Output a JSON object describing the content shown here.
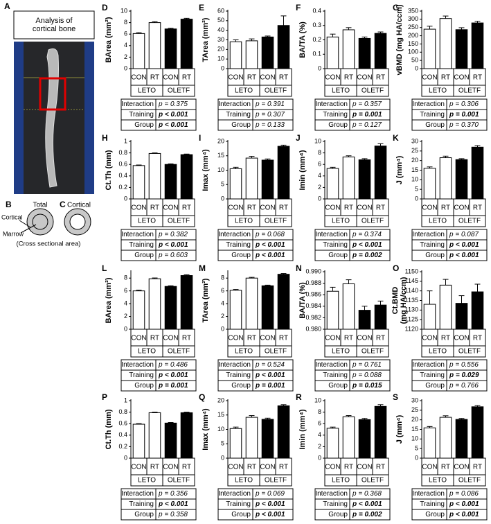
{
  "figure": {
    "a_label": "A",
    "a_title": "Analysis of\ncortical bone",
    "b_label": "B",
    "b_title": "Total",
    "c_label": "C",
    "c_title": "Cortical",
    "cortical": "Cortical",
    "marrow": "Marrow",
    "caption": "(Cross sectional area)"
  },
  "chart_data": [
    {
      "type": "bar",
      "panel": "D",
      "ylabel": "BArea (mm²)",
      "categories": [
        "CON",
        "RT",
        "CON",
        "RT"
      ],
      "groups": [
        "LETO",
        "OLETF"
      ],
      "colors": [
        "#ffffff",
        "#ffffff",
        "#000000",
        "#000000"
      ],
      "values": [
        6.1,
        8.0,
        6.9,
        8.6
      ],
      "errors": [
        0.15,
        0.15,
        0.12,
        0.15
      ],
      "ylim": [
        0,
        10
      ],
      "yticks": [
        0,
        2,
        4,
        6,
        8,
        10
      ],
      "stats": [
        {
          "label": "Interaction",
          "p": "p = 0.375",
          "bold": false
        },
        {
          "label": "Training",
          "p": "p < 0.001",
          "bold": true
        },
        {
          "label": "Group",
          "p": "p < 0.001",
          "bold": true
        }
      ]
    },
    {
      "type": "bar",
      "panel": "E",
      "ylabel": "TArea (mm²)",
      "categories": [
        "CON",
        "RT",
        "CON",
        "RT"
      ],
      "groups": [
        "LETO",
        "OLETF"
      ],
      "colors": [
        "#ffffff",
        "#ffffff",
        "#000000",
        "#000000"
      ],
      "values": [
        28,
        29,
        33,
        45
      ],
      "errors": [
        2,
        2,
        1,
        10
      ],
      "ylim": [
        0,
        60
      ],
      "yticks": [
        0,
        10,
        20,
        30,
        40,
        50,
        60
      ],
      "stats": [
        {
          "label": "Interaction",
          "p": "p = 0.391",
          "bold": false
        },
        {
          "label": "Training",
          "p": "p = 0.307",
          "bold": false
        },
        {
          "label": "Group",
          "p": "p = 0.133",
          "bold": false
        }
      ]
    },
    {
      "type": "bar",
      "panel": "F",
      "ylabel": "BA/TA (%)",
      "categories": [
        "CON",
        "RT",
        "CON",
        "RT"
      ],
      "groups": [
        "LETO",
        "OLETF"
      ],
      "colors": [
        "#ffffff",
        "#ffffff",
        "#000000",
        "#000000"
      ],
      "values": [
        0.22,
        0.27,
        0.21,
        0.245
      ],
      "errors": [
        0.02,
        0.015,
        0.01,
        0.01
      ],
      "ylim": [
        0,
        0.4
      ],
      "yticks": [
        0,
        0.1,
        0.2,
        0.3,
        0.4
      ],
      "stats": [
        {
          "label": "Interaction",
          "p": "p = 0.357",
          "bold": false
        },
        {
          "label": "Training",
          "p": "p = 0.001",
          "bold": true
        },
        {
          "label": "Group",
          "p": "p = 0.127",
          "bold": false
        }
      ]
    },
    {
      "type": "bar",
      "panel": "G",
      "ylabel": "vBMD (mg HA/ccm)",
      "categories": [
        "CON",
        "RT",
        "CON",
        "RT"
      ],
      "groups": [
        "LETO",
        "OLETF"
      ],
      "colors": [
        "#ffffff",
        "#ffffff",
        "#000000",
        "#000000"
      ],
      "values": [
        240,
        305,
        237,
        278
      ],
      "errors": [
        18,
        15,
        12,
        10
      ],
      "ylim": [
        0,
        350
      ],
      "yticks": [
        0,
        50,
        100,
        150,
        200,
        250,
        300,
        350
      ],
      "stats": [
        {
          "label": "Interaction",
          "p": "p = 0.306",
          "bold": false
        },
        {
          "label": "Training",
          "p": "p = 0.001",
          "bold": true
        },
        {
          "label": "Group",
          "p": "p = 0.370",
          "bold": false
        }
      ]
    },
    {
      "type": "bar",
      "panel": "H",
      "ylabel": "Ct.Th (mm)",
      "categories": [
        "CON",
        "RT",
        "CON",
        "RT"
      ],
      "groups": [
        "LETO",
        "OLETF"
      ],
      "colors": [
        "#ffffff",
        "#ffffff",
        "#000000",
        "#000000"
      ],
      "values": [
        0.58,
        0.79,
        0.6,
        0.77
      ],
      "errors": [
        0.01,
        0.01,
        0.01,
        0.01
      ],
      "ylim": [
        0,
        1
      ],
      "yticks": [
        0,
        0.2,
        0.4,
        0.6,
        0.8,
        1
      ],
      "stats": [
        {
          "label": "Interaction",
          "p": "p = 0.382",
          "bold": false
        },
        {
          "label": "Training",
          "p": "p < 0.001",
          "bold": true
        },
        {
          "label": "Group",
          "p": "p = 0.603",
          "bold": false
        }
      ]
    },
    {
      "type": "bar",
      "panel": "I",
      "ylabel": "Imax (mm⁴)",
      "categories": [
        "CON",
        "RT",
        "CON",
        "RT"
      ],
      "groups": [
        "LETO",
        "OLETF"
      ],
      "colors": [
        "#ffffff",
        "#ffffff",
        "#000000",
        "#000000"
      ],
      "values": [
        10.5,
        14.2,
        13.5,
        18.3
      ],
      "errors": [
        0.5,
        0.6,
        0.4,
        0.4
      ],
      "ylim": [
        0,
        20
      ],
      "yticks": [
        0,
        5,
        10,
        15,
        20
      ],
      "stats": [
        {
          "label": "Interaction",
          "p": "p = 0.068",
          "bold": false
        },
        {
          "label": "Training",
          "p": "p < 0.001",
          "bold": true
        },
        {
          "label": "Group",
          "p": "p < 0.001",
          "bold": true
        }
      ]
    },
    {
      "type": "bar",
      "panel": "J",
      "ylabel": "Imin (mm⁴)",
      "categories": [
        "CON",
        "RT",
        "CON",
        "RT"
      ],
      "groups": [
        "LETO",
        "OLETF"
      ],
      "colors": [
        "#ffffff",
        "#ffffff",
        "#000000",
        "#000000"
      ],
      "values": [
        5.3,
        7.3,
        6.8,
        9.2
      ],
      "errors": [
        0.2,
        0.2,
        0.2,
        0.4
      ],
      "ylim": [
        0,
        10
      ],
      "yticks": [
        0,
        2,
        4,
        6,
        8,
        10
      ],
      "stats": [
        {
          "label": "Interaction",
          "p": "p = 0.374",
          "bold": false
        },
        {
          "label": "Training",
          "p": "p < 0.001",
          "bold": true
        },
        {
          "label": "Group",
          "p": "p = 0.002",
          "bold": true
        }
      ]
    },
    {
      "type": "bar",
      "panel": "K",
      "ylabel": "J (mm⁴)",
      "categories": [
        "CON",
        "RT",
        "CON",
        "RT"
      ],
      "groups": [
        "LETO",
        "OLETF"
      ],
      "colors": [
        "#ffffff",
        "#ffffff",
        "#000000",
        "#000000"
      ],
      "values": [
        16,
        21.5,
        20.5,
        27
      ],
      "errors": [
        0.7,
        0.8,
        0.5,
        0.8
      ],
      "ylim": [
        0,
        30
      ],
      "yticks": [
        0,
        5,
        10,
        15,
        20,
        25,
        30
      ],
      "stats": [
        {
          "label": "Interaction",
          "p": "p = 0.087",
          "bold": false
        },
        {
          "label": "Training",
          "p": "p < 0.001",
          "bold": true
        },
        {
          "label": "Group",
          "p": "p < 0.001",
          "bold": true
        }
      ]
    },
    {
      "type": "bar",
      "panel": "L",
      "ylabel": "BArea (mm²)",
      "categories": [
        "CON",
        "RT",
        "CON",
        "RT"
      ],
      "groups": [
        "LETO",
        "OLETF"
      ],
      "colors": [
        "#ffffff",
        "#ffffff",
        "#000000",
        "#000000"
      ],
      "values": [
        6.0,
        7.9,
        6.7,
        8.4
      ],
      "errors": [
        0.12,
        0.12,
        0.1,
        0.12
      ],
      "ylim": [
        0,
        9
      ],
      "yticks": [
        0,
        2,
        4,
        6,
        8
      ],
      "stats": [
        {
          "label": "Interaction",
          "p": "p = 0.486",
          "bold": false
        },
        {
          "label": "Training",
          "p": "p < 0.001",
          "bold": true
        },
        {
          "label": "Group",
          "p": "p = 0.001",
          "bold": true
        }
      ]
    },
    {
      "type": "bar",
      "panel": "M",
      "ylabel": "TArea (mm²)",
      "categories": [
        "CON",
        "RT",
        "CON",
        "RT"
      ],
      "groups": [
        "LETO",
        "OLETF"
      ],
      "colors": [
        "#ffffff",
        "#ffffff",
        "#000000",
        "#000000"
      ],
      "values": [
        6.1,
        8.0,
        6.8,
        8.6
      ],
      "errors": [
        0.12,
        0.12,
        0.1,
        0.12
      ],
      "ylim": [
        0,
        9
      ],
      "yticks": [
        0,
        2,
        4,
        6,
        8
      ],
      "stats": [
        {
          "label": "Interaction",
          "p": "p = 0.524",
          "bold": false
        },
        {
          "label": "Training",
          "p": "p < 0.001",
          "bold": true
        },
        {
          "label": "Group",
          "p": "p = 0.001",
          "bold": true
        }
      ]
    },
    {
      "type": "bar",
      "panel": "N",
      "ylabel": "BA/TA (%)",
      "categories": [
        "CON",
        "RT",
        "CON",
        "RT"
      ],
      "groups": [
        "LETO",
        "OLETF"
      ],
      "colors": [
        "#ffffff",
        "#ffffff",
        "#000000",
        "#000000"
      ],
      "values": [
        0.9866,
        0.9879,
        0.9833,
        0.9842
      ],
      "errors": [
        0.0007,
        0.0007,
        0.0007,
        0.0007
      ],
      "ylim": [
        0.98,
        0.99
      ],
      "yticks": [
        {
          "value": 0.98,
          "label": "0.980"
        },
        {
          "value": 0.982,
          "label": "0.982"
        },
        {
          "value": 0.984,
          "label": "0.984"
        },
        {
          "value": 0.986,
          "label": "0.986"
        },
        {
          "value": 0.988,
          "label": "0.988"
        },
        {
          "value": 0.99,
          "label": "0.990"
        }
      ],
      "stats": [
        {
          "label": "Interaction",
          "p": "p = 0.761",
          "bold": false
        },
        {
          "label": "Training",
          "p": "p = 0.088",
          "bold": false
        },
        {
          "label": "Group",
          "p": "p = 0.015",
          "bold": true
        }
      ]
    },
    {
      "type": "bar",
      "panel": "O",
      "ylabel": "Ct.BMD\n(mg HA/ccm)",
      "categories": [
        "CON",
        "RT",
        "CON",
        "RT"
      ],
      "groups": [
        "LETO",
        "OLETF"
      ],
      "colors": [
        "#ffffff",
        "#ffffff",
        "#000000",
        "#000000"
      ],
      "values": [
        1133,
        1143,
        1133.5,
        1139.5
      ],
      "errors": [
        7,
        3,
        4,
        4
      ],
      "ylim": [
        1120,
        1150
      ],
      "yticks": [
        1120,
        1125,
        1130,
        1135,
        1140,
        1145,
        1150
      ],
      "stats": [
        {
          "label": "Interaction",
          "p": "p = 0.556",
          "bold": false
        },
        {
          "label": "Training",
          "p": "p = 0.029",
          "bold": true
        },
        {
          "label": "Group",
          "p": "p = 0.766",
          "bold": false
        }
      ]
    },
    {
      "type": "bar",
      "panel": "P",
      "ylabel": "Ct.Th (mm)",
      "categories": [
        "CON",
        "RT",
        "CON",
        "RT"
      ],
      "groups": [
        "LETO",
        "OLETF"
      ],
      "colors": [
        "#ffffff",
        "#ffffff",
        "#000000",
        "#000000"
      ],
      "values": [
        0.59,
        0.79,
        0.61,
        0.79
      ],
      "errors": [
        0.01,
        0.01,
        0.01,
        0.01
      ],
      "ylim": [
        0,
        1
      ],
      "yticks": [
        0,
        0.2,
        0.4,
        0.6,
        0.8,
        1
      ],
      "stats": [
        {
          "label": "Interaction",
          "p": "p = 0.356",
          "bold": false
        },
        {
          "label": "Training",
          "p": "p < 0.001",
          "bold": true
        },
        {
          "label": "Group",
          "p": "p = 0.358",
          "bold": false
        }
      ]
    },
    {
      "type": "bar",
      "panel": "Q",
      "ylabel": "Imax (mm⁴)",
      "categories": [
        "CON",
        "RT",
        "CON",
        "RT"
      ],
      "groups": [
        "LETO",
        "OLETF"
      ],
      "colors": [
        "#ffffff",
        "#ffffff",
        "#000000",
        "#000000"
      ],
      "values": [
        10.3,
        14.2,
        13.5,
        18.2
      ],
      "errors": [
        0.5,
        0.6,
        0.4,
        0.4
      ],
      "ylim": [
        0,
        20
      ],
      "yticks": [
        0,
        5,
        10,
        15,
        20
      ],
      "stats": [
        {
          "label": "Interaction",
          "p": "p = 0.069",
          "bold": false
        },
        {
          "label": "Training",
          "p": "p < 0.001",
          "bold": true
        },
        {
          "label": "Group",
          "p": "p < 0.001",
          "bold": true
        }
      ]
    },
    {
      "type": "bar",
      "panel": "R",
      "ylabel": "Imin (mm⁴)",
      "categories": [
        "CON",
        "RT",
        "CON",
        "RT"
      ],
      "groups": [
        "LETO",
        "OLETF"
      ],
      "colors": [
        "#ffffff",
        "#ffffff",
        "#000000",
        "#000000"
      ],
      "values": [
        5.2,
        7.2,
        6.7,
        9.0
      ],
      "errors": [
        0.2,
        0.2,
        0.2,
        0.3
      ],
      "ylim": [
        0,
        10
      ],
      "yticks": [
        0,
        2,
        4,
        6,
        8,
        10
      ],
      "stats": [
        {
          "label": "Interaction",
          "p": "p = 0.368",
          "bold": false
        },
        {
          "label": "Training",
          "p": "p < 0.001",
          "bold": true
        },
        {
          "label": "Group",
          "p": "p = 0.002",
          "bold": true
        }
      ]
    },
    {
      "type": "bar",
      "panel": "S",
      "ylabel": "J (mm⁴)",
      "categories": [
        "CON",
        "RT",
        "CON",
        "RT"
      ],
      "groups": [
        "LETO",
        "OLETF"
      ],
      "colors": [
        "#ffffff",
        "#ffffff",
        "#000000",
        "#000000"
      ],
      "values": [
        15.8,
        21.3,
        20.2,
        26.8
      ],
      "errors": [
        0.7,
        0.8,
        0.5,
        0.6
      ],
      "ylim": [
        0,
        30
      ],
      "yticks": [
        0,
        5,
        10,
        15,
        20,
        25,
        30
      ],
      "stats": [
        {
          "label": "Interaction",
          "p": "p = 0.086",
          "bold": false
        },
        {
          "label": "Training",
          "p": "p < 0.001",
          "bold": true
        },
        {
          "label": "Group",
          "p": "p < 0.001",
          "bold": true
        }
      ]
    }
  ]
}
